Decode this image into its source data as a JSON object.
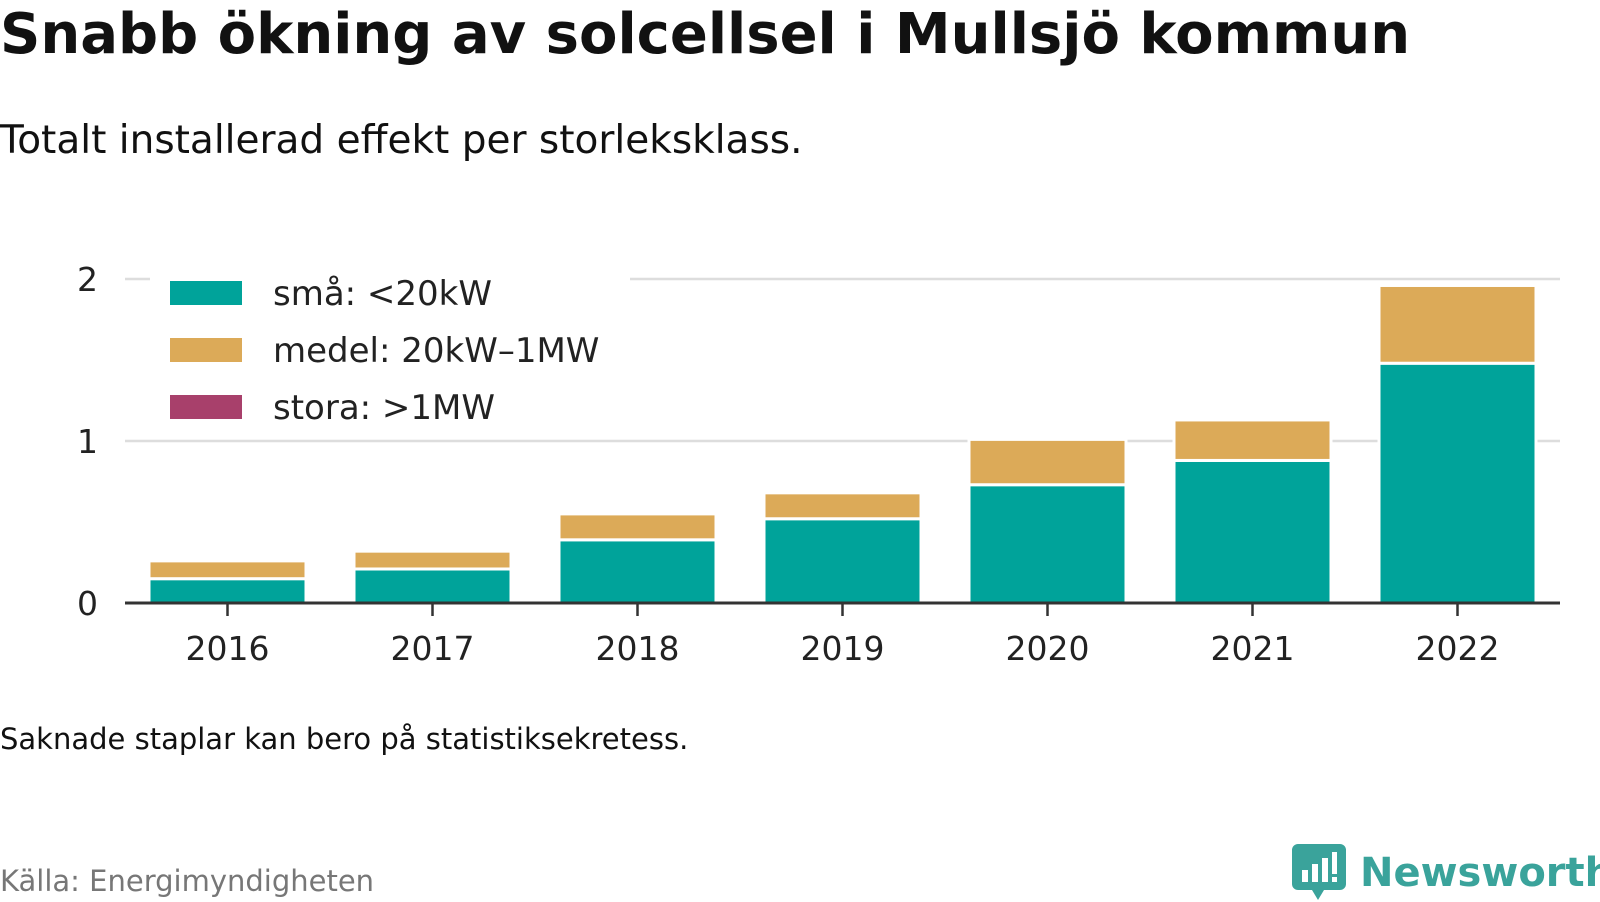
{
  "title": "Snabb ökning av solcellsel i Mullsjö kommun",
  "subtitle": "Totalt installerad effekt per storleksklass.",
  "note": "Saknade staplar kan bero på statistiksekretess.",
  "source": "Källa: Energimyndigheten",
  "brand": {
    "name": "Newsworthy",
    "icon": "newsworthy-logo-icon",
    "color": "#3aa39b"
  },
  "chart_data": {
    "type": "bar",
    "stacked": true,
    "categories": [
      "2016",
      "2017",
      "2018",
      "2019",
      "2020",
      "2021",
      "2022"
    ],
    "series": [
      {
        "name": "små: <20kW",
        "color": "#00a39a",
        "values": [
          0.15,
          0.21,
          0.39,
          0.52,
          0.73,
          0.88,
          1.48
        ]
      },
      {
        "name": "medel: 20kW–1MW",
        "color": "#dcaa58",
        "values": [
          0.11,
          0.11,
          0.16,
          0.16,
          0.28,
          0.25,
          0.48
        ]
      },
      {
        "name": "stora: >1MW",
        "color": "#a8406b",
        "values": [
          0,
          0,
          0,
          0,
          0,
          0,
          0
        ]
      }
    ],
    "yticks": [
      0,
      1,
      2
    ],
    "ylim": [
      0,
      2
    ],
    "grid": true,
    "legend": "top-left"
  }
}
